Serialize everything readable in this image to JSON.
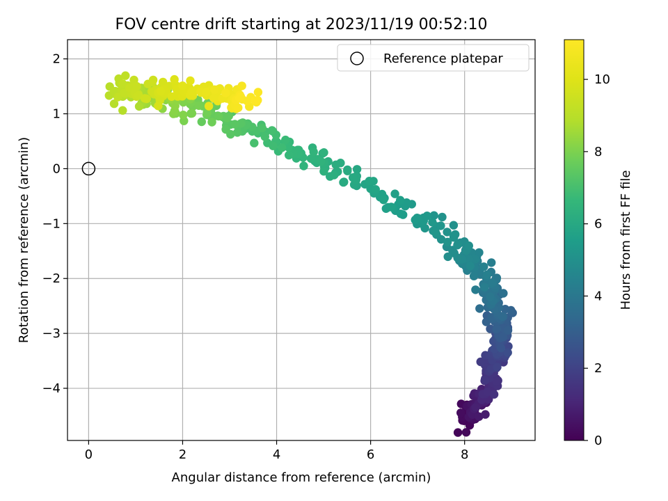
{
  "chart_data": {
    "type": "scatter",
    "title": "FOV centre drift starting at 2023/11/19 00:52:10",
    "xlabel": "Angular distance from reference (arcmin)",
    "ylabel": "Rotation from reference (arcmin)",
    "xlim": [
      -0.45,
      9.5
    ],
    "ylim": [
      -4.95,
      2.35
    ],
    "xticks": [
      0,
      2,
      4,
      6,
      8
    ],
    "yticks": [
      2,
      1,
      0,
      -1,
      -2,
      -3,
      -4
    ],
    "xtick_labels": [
      "0",
      "2",
      "4",
      "6",
      "8"
    ],
    "ytick_labels": [
      "2",
      "1",
      "0",
      "−1",
      "−2",
      "−3",
      "−4"
    ],
    "grid": true,
    "colormap": "viridis",
    "colorbar": {
      "label": "Hours from first FF file",
      "range": [
        0,
        11.1
      ],
      "ticks": [
        0,
        2,
        4,
        6,
        8,
        10
      ],
      "tick_labels": [
        "0",
        "2",
        "4",
        "6",
        "8",
        "10"
      ]
    },
    "legend": {
      "position": "upper-right",
      "entries": [
        {
          "label": "Reference platepar",
          "marker": "open-circle",
          "color": "#000000"
        }
      ]
    },
    "reference_point": {
      "x": 0,
      "y": 0
    },
    "drift_path": [
      {
        "hours": 0.0,
        "x": 8.0,
        "y": -4.6
      },
      {
        "hours": 1.0,
        "x": 8.4,
        "y": -4.1
      },
      {
        "hours": 2.0,
        "x": 8.7,
        "y": -3.4
      },
      {
        "hours": 3.0,
        "x": 8.8,
        "y": -2.8
      },
      {
        "hours": 4.0,
        "x": 8.5,
        "y": -2.1
      },
      {
        "hours": 5.0,
        "x": 7.8,
        "y": -1.3
      },
      {
        "hours": 5.6,
        "x": 6.5,
        "y": -0.6
      },
      {
        "hours": 6.2,
        "x": 5.2,
        "y": 0.0
      },
      {
        "hours": 6.8,
        "x": 4.0,
        "y": 0.5
      },
      {
        "hours": 7.4,
        "x": 3.0,
        "y": 0.9
      },
      {
        "hours": 8.2,
        "x": 1.8,
        "y": 1.2
      },
      {
        "hours": 9.0,
        "x": 0.6,
        "y": 1.45
      },
      {
        "hours": 9.8,
        "x": 1.6,
        "y": 1.45
      },
      {
        "hours": 10.5,
        "x": 2.7,
        "y": 1.35
      },
      {
        "hours": 11.1,
        "x": 3.5,
        "y": 1.25
      }
    ],
    "point_count": 620,
    "spread_arcmin": 0.16
  }
}
